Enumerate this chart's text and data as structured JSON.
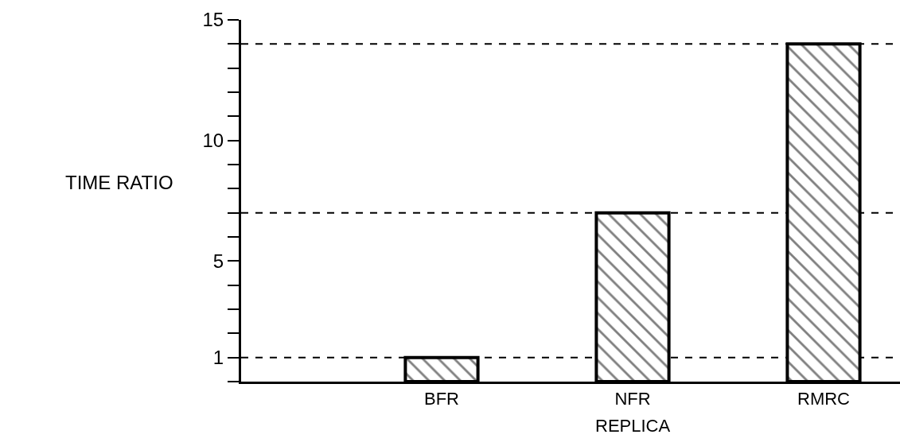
{
  "chart_data": {
    "type": "bar",
    "ylabel": "TIME RATIO",
    "xlabel": "REPLICA",
    "categories": [
      "BFR",
      "NFR",
      "RMRC"
    ],
    "series": [
      {
        "color": "#000000",
        "values": [
          1,
          7,
          14
        ]
      }
    ],
    "ylim": [
      0,
      15
    ],
    "yticks": [
      {
        "value": 0,
        "label": null
      },
      1,
      {
        "value": 2,
        "label": null
      },
      {
        "value": 3,
        "label": null
      },
      {
        "value": 4,
        "label": null
      },
      5,
      {
        "value": 6,
        "label": null
      },
      {
        "value": 7,
        "label": null
      },
      {
        "value": 8,
        "label": null
      },
      {
        "value": 9,
        "label": null
      },
      10,
      {
        "value": 11,
        "label": null
      },
      {
        "value": 12,
        "label": null
      },
      {
        "value": 13,
        "label": null
      },
      {
        "value": 14,
        "label": null
      },
      15
    ],
    "ref_lines": [
      {
        "axis": "y",
        "value": 1,
        "line_style": "dashed",
        "color": "#000000"
      },
      {
        "axis": "y",
        "value": 7,
        "line_style": "dashed",
        "color": "#000000"
      },
      {
        "axis": "y",
        "value": 14,
        "line_style": "dashed",
        "color": "#000000"
      }
    ],
    "grid": false
  }
}
